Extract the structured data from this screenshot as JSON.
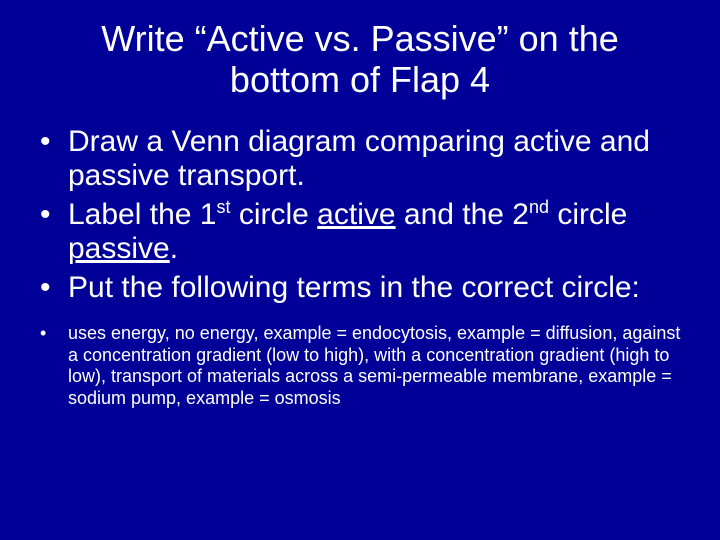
{
  "background_color": "#000099",
  "text_color": "#ffffff",
  "title_fontsize": 36,
  "bullet_large_fontsize": 30,
  "bullet_small_fontsize": 18,
  "font_family": "Arial",
  "title": "Write “Active vs. Passive” on the bottom of Flap 4",
  "bullets": [
    {
      "size": "large",
      "text": "Draw a Venn diagram comparing active and passive transport."
    },
    {
      "size": "large",
      "prefix": "Label the 1",
      "sup1": "st",
      "mid1": " circle ",
      "under1": "active",
      "mid2": " and the 2",
      "sup2": "nd",
      "mid3": " circle ",
      "under2": "passive",
      "suffix": "."
    },
    {
      "size": "large",
      "text": "Put the following terms in the correct circle:"
    },
    {
      "size": "small",
      "text": "uses energy, no energy, example = endocytosis, example = diffusion, against a concentration gradient (low to high), with a concentration gradient (high to low), transport of materials across a semi-permeable membrane, example = sodium pump, example = osmosis"
    }
  ]
}
